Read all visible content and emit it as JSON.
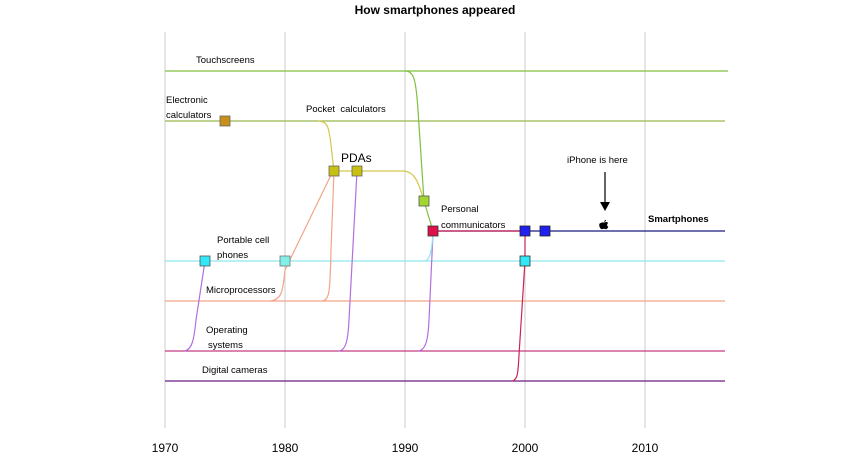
{
  "title": "How smartphones appeared",
  "x_ticks": [
    "1970",
    "1980",
    "1990",
    "2000",
    "2010"
  ],
  "chart_data": {
    "type": "line",
    "x_range": [
      1970,
      2017
    ],
    "gridlines": [
      1970,
      1980,
      1990,
      2000,
      2010
    ],
    "technologies": [
      {
        "key": "touchscreens",
        "label": [
          "Touchscreens"
        ],
        "color": "#7fbf3f"
      },
      {
        "key": "electronic_calculators",
        "label": [
          "Electronic",
          "calculators"
        ],
        "color": "#99b84d"
      },
      {
        "key": "pocket_calculators",
        "label": [
          "Pocket  calculators"
        ],
        "color": "#99b84d"
      },
      {
        "key": "pdas",
        "label": [
          "PDAs"
        ],
        "color": "#d4c84a"
      },
      {
        "key": "personal_communicators",
        "label": [
          "Personal",
          "communicators"
        ],
        "color": "#cc2255"
      },
      {
        "key": "smartphones",
        "label": [
          "Smartphones"
        ],
        "color": "#1a1a80"
      },
      {
        "key": "portable_cell_phones",
        "label": [
          "Portable cell",
          "phones"
        ],
        "color": "#8ee6f0"
      },
      {
        "key": "microprocessors",
        "label": [
          "Microprocessors"
        ],
        "color": "#f2a488"
      },
      {
        "key": "operating_systems",
        "label": [
          "Operating",
          "systems"
        ],
        "color": "#c43a80"
      },
      {
        "key": "digital_cameras",
        "label": [
          "Digital cameras"
        ],
        "color": "#6a1a80"
      }
    ],
    "markers": [
      {
        "key": "electronic_calculators",
        "year": 1975,
        "color": "#c8901a"
      },
      {
        "key": "pocket_calculators_1",
        "year": 1984,
        "color": "#c8c010"
      },
      {
        "key": "pdas",
        "year": 1986,
        "color": "#c8c010"
      },
      {
        "key": "touchscreens",
        "year": 1991.5,
        "color": "#a0d830"
      },
      {
        "key": "personal_communicators",
        "year": 1992.3,
        "color": "#e0104a"
      },
      {
        "key": "smartphones_1",
        "year": 2000,
        "color": "#2020f0"
      },
      {
        "key": "smartphones_2",
        "year": 2001.7,
        "color": "#2020f0"
      },
      {
        "key": "portable_cell_phones_1",
        "year": 1973.3,
        "color": "#30e8f8"
      },
      {
        "key": "portable_cell_phones_2",
        "year": 1980,
        "color": "#80f0e8"
      },
      {
        "key": "convergence_cell_camera",
        "year": 2000,
        "color": "#30e8f8"
      }
    ],
    "annotation": {
      "text": "iPhone is here",
      "year": 2007,
      "icon": "apple-logo-icon"
    }
  }
}
